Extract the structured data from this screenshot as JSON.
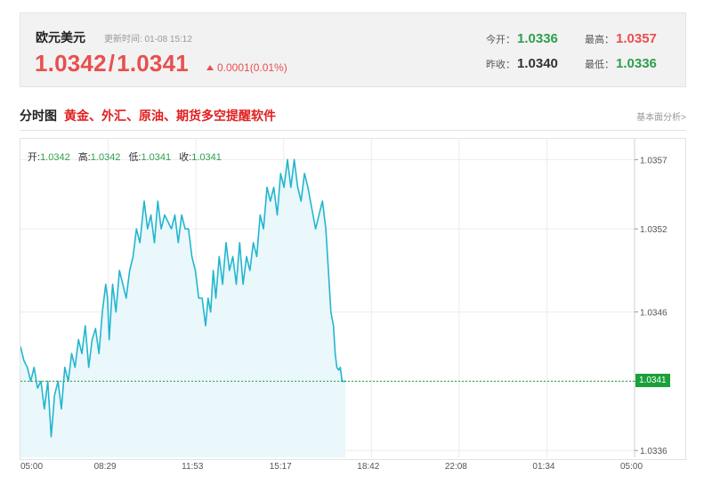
{
  "quote": {
    "name": "欧元美元",
    "update_time": "更新时间: 01-08 15:12",
    "bid": "1.0342",
    "slash": "/",
    "ask": "1.0341",
    "change": "0.0001(0.01%)",
    "open_label": "今开：",
    "open": "1.0336",
    "prev_close_label": "昨收：",
    "prev_close": "1.0340",
    "high_label": "最高：",
    "high": "1.0357",
    "low_label": "最低：",
    "low": "1.0336"
  },
  "section": {
    "title": "分时图",
    "promo": "黄金、外汇、原油、期货多空提醒软件",
    "analysis_link": "基本面分析>"
  },
  "ohlc": {
    "open_label": "开:",
    "open": "1.0342",
    "high_label": "高:",
    "high": "1.0342",
    "low_label": "低:",
    "low": "1.0341",
    "close_label": "收:",
    "close": "1.0341"
  },
  "colors": {
    "line": "#22b6cf",
    "fill": "#eaf7fb",
    "up": "#e94f4f",
    "down": "#2e9f4c",
    "current": "#1aa13a"
  },
  "chart_data": {
    "type": "area",
    "x_ticks": [
      "05:00",
      "08:29",
      "11:53",
      "15:17",
      "18:42",
      "22:08",
      "01:34",
      "05:00"
    ],
    "y_ticks": [
      1.0357,
      1.0352,
      1.0346,
      1.0341,
      1.0336
    ],
    "ylim": [
      1.03355,
      1.03585
    ],
    "current_price": 1.0341,
    "current_price_label": "1.0341",
    "grid": true,
    "series": [
      {
        "x_minutes": [
          0,
          8,
          16,
          24,
          32,
          40,
          48,
          56,
          64,
          72,
          80,
          88,
          96,
          104,
          112,
          120,
          128,
          136,
          144,
          152,
          160,
          168,
          176,
          184,
          192,
          200,
          204,
          208,
          216,
          224,
          232,
          240,
          248,
          256,
          264,
          272,
          280,
          290,
          298,
          306,
          314,
          322,
          330,
          338,
          346,
          354,
          362,
          370,
          378,
          386,
          394,
          402,
          410,
          418,
          426,
          434,
          440,
          446,
          452,
          458,
          466,
          474,
          482,
          490,
          498,
          506,
          514,
          522,
          530,
          538,
          546,
          554,
          562,
          570,
          578,
          586,
          594,
          602,
          610,
          618,
          626,
          634,
          642,
          650,
          658,
          666,
          674,
          680,
          686,
          692,
          700,
          708,
          716,
          722,
          728,
          734,
          738,
          742,
          746,
          750,
          754,
          758,
          762
        ],
        "values": [
          1.03435,
          1.03425,
          1.0342,
          1.0341,
          1.0342,
          1.03405,
          1.0341,
          1.0339,
          1.0341,
          1.0337,
          1.034,
          1.0341,
          1.0339,
          1.0342,
          1.0341,
          1.0343,
          1.0342,
          1.0344,
          1.0343,
          1.0345,
          1.0342,
          1.0344,
          1.03448,
          1.0343,
          1.0346,
          1.0348,
          1.0347,
          1.0344,
          1.0348,
          1.0346,
          1.0349,
          1.0348,
          1.0347,
          1.0349,
          1.035,
          1.0352,
          1.0351,
          1.0354,
          1.0352,
          1.0353,
          1.0351,
          1.0354,
          1.0352,
          1.0353,
          1.03525,
          1.0352,
          1.0353,
          1.0351,
          1.0353,
          1.0352,
          1.0352,
          1.035,
          1.0349,
          1.0347,
          1.0347,
          1.0345,
          1.0347,
          1.0346,
          1.0349,
          1.0347,
          1.035,
          1.0348,
          1.0351,
          1.0349,
          1.035,
          1.0348,
          1.0351,
          1.0348,
          1.035,
          1.0349,
          1.0351,
          1.035,
          1.0353,
          1.0352,
          1.0355,
          1.0354,
          1.0355,
          1.0353,
          1.0356,
          1.0355,
          1.0357,
          1.0355,
          1.0357,
          1.0355,
          1.0354,
          1.0356,
          1.0355,
          1.0354,
          1.0353,
          1.0352,
          1.0353,
          1.0354,
          1.0352,
          1.0349,
          1.0346,
          1.0345,
          1.0343,
          1.0342,
          1.03418,
          1.0342,
          1.0341,
          1.0341,
          1.0341
        ]
      }
    ]
  }
}
